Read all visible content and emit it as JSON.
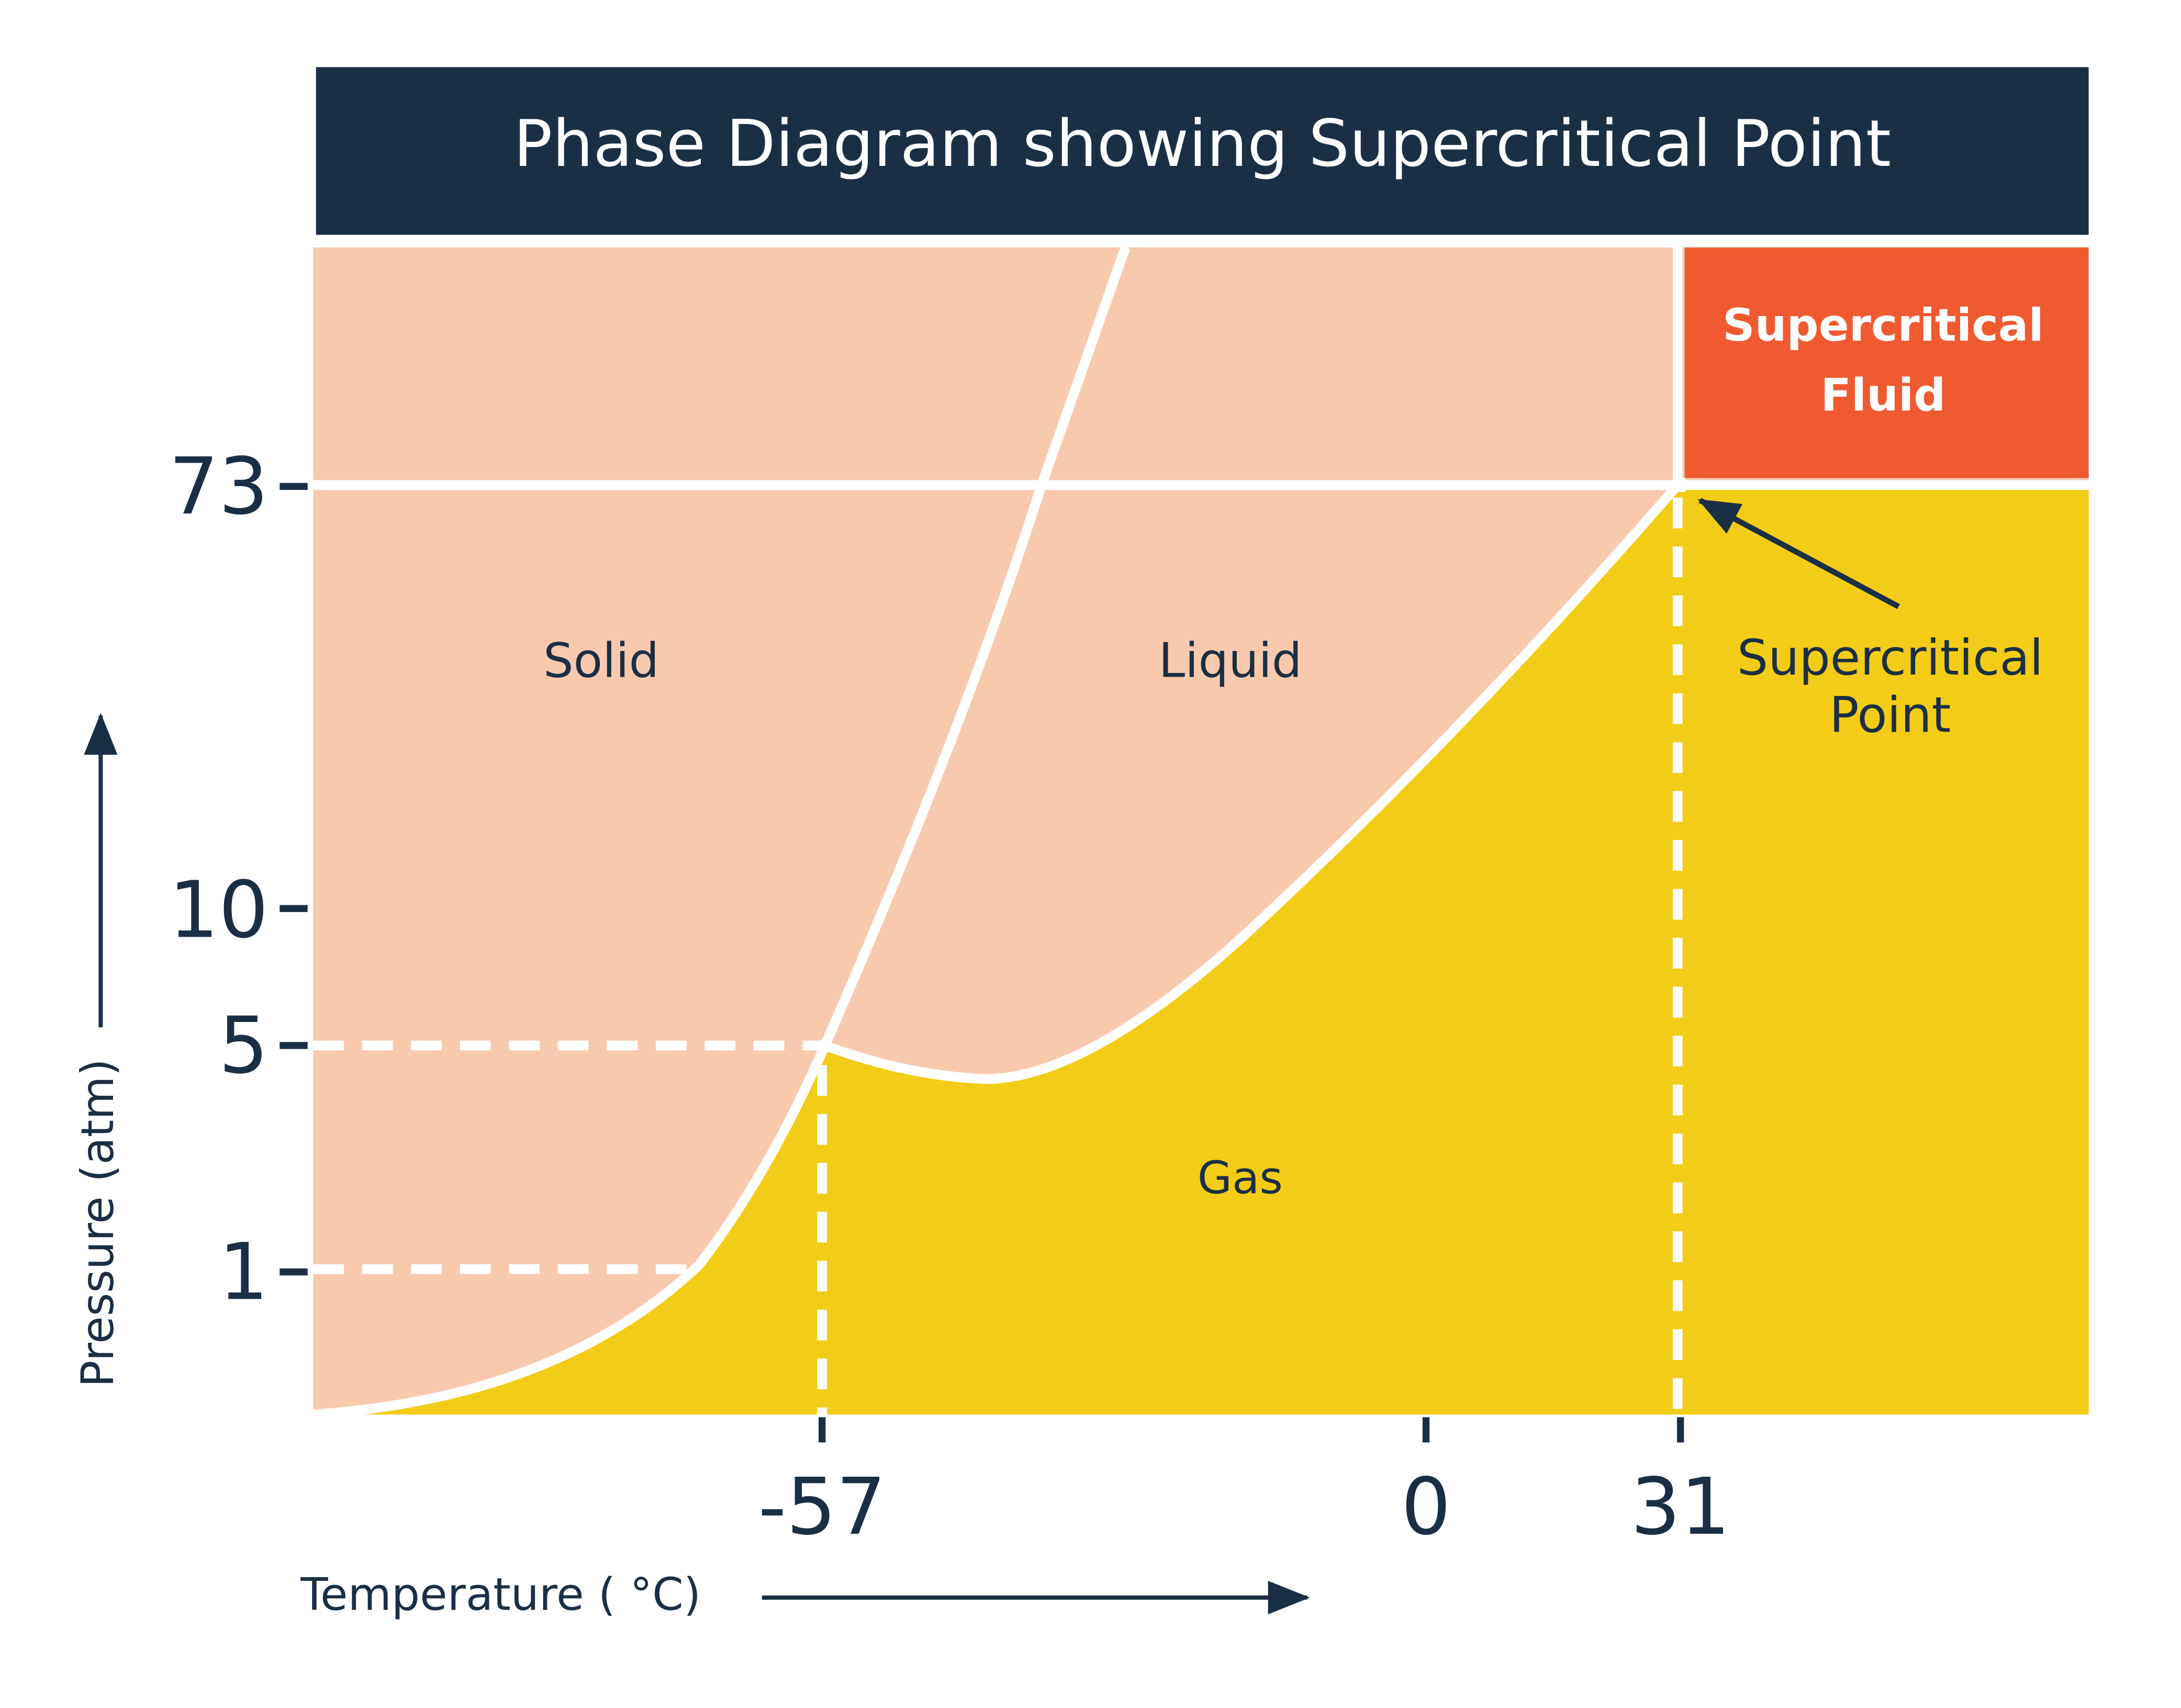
{
  "title": "Phase Diagram showing Supercritical Point",
  "regions": {
    "solid": "Solid",
    "liquid": "Liquid",
    "gas": "Gas",
    "supercritical_fluid": [
      "Supercritical",
      "Fluid"
    ]
  },
  "annotation": [
    "Supercritical",
    "Point"
  ],
  "y_axis": {
    "label": "Pressure (atm)",
    "ticks": [
      "73",
      "10",
      "5",
      "1"
    ]
  },
  "x_axis": {
    "label": "Temperature ( °C)",
    "ticks": [
      "-57",
      "0",
      "31"
    ]
  }
}
